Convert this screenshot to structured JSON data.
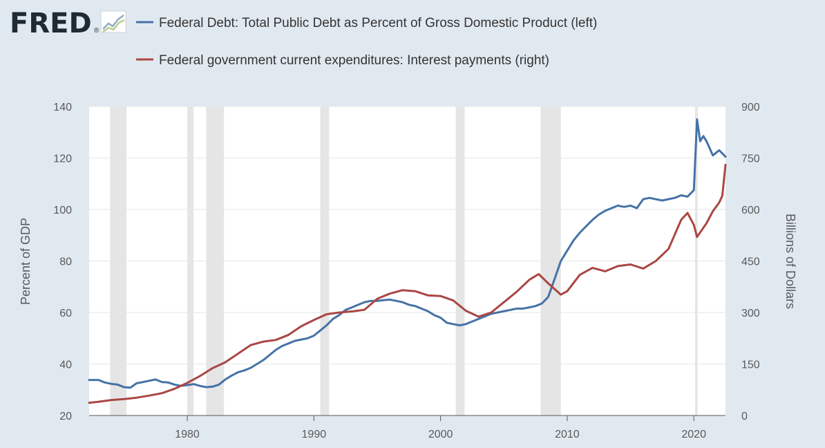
{
  "brand": {
    "name": "FRED",
    "mark": "®",
    "icon": "trend-chart-icon"
  },
  "chart_data": {
    "type": "line",
    "title": "",
    "legend_position": "top-left",
    "grid": true,
    "xlim": [
      1972.25,
      2022.5
    ],
    "x_ticks": [
      1980,
      1990,
      2000,
      2010,
      2020
    ],
    "left_axis": {
      "label": "Percent of GDP",
      "ylim": [
        20,
        140
      ],
      "ticks": [
        20,
        40,
        60,
        80,
        100,
        120,
        140
      ]
    },
    "right_axis": {
      "label": "Billions of Dollars",
      "ylim": [
        0,
        900
      ],
      "ticks": [
        0,
        150,
        300,
        450,
        600,
        750,
        900
      ]
    },
    "recessions": [
      [
        1973.9,
        1975.2
      ],
      [
        1980.0,
        1980.5
      ],
      [
        1981.5,
        1982.9
      ],
      [
        1990.5,
        1991.2
      ],
      [
        2001.2,
        2001.9
      ],
      [
        2007.9,
        2009.5
      ],
      [
        2020.1,
        2020.3
      ]
    ],
    "series": [
      {
        "name": "Federal Debt: Total Public Debt as Percent of Gross Domestic Product (left)",
        "axis": "left",
        "color": "#4572a7",
        "points": [
          [
            1972.25,
            33.8
          ],
          [
            1973,
            33.8
          ],
          [
            1973.5,
            32.8
          ],
          [
            1974,
            32.3
          ],
          [
            1974.5,
            32.0
          ],
          [
            1975,
            31.0
          ],
          [
            1975.5,
            30.8
          ],
          [
            1976,
            32.5
          ],
          [
            1976.5,
            33.0
          ],
          [
            1977,
            33.5
          ],
          [
            1977.5,
            34.0
          ],
          [
            1978,
            33.0
          ],
          [
            1978.5,
            32.8
          ],
          [
            1979,
            32.0
          ],
          [
            1979.5,
            31.5
          ],
          [
            1980,
            31.8
          ],
          [
            1980.5,
            32.2
          ],
          [
            1981,
            31.5
          ],
          [
            1981.5,
            31.0
          ],
          [
            1982,
            31.2
          ],
          [
            1982.5,
            32.0
          ],
          [
            1983,
            34.0
          ],
          [
            1983.5,
            35.5
          ],
          [
            1984,
            36.8
          ],
          [
            1984.5,
            37.5
          ],
          [
            1985,
            38.5
          ],
          [
            1985.5,
            40.0
          ],
          [
            1986,
            41.5
          ],
          [
            1986.5,
            43.5
          ],
          [
            1987,
            45.5
          ],
          [
            1987.5,
            47.0
          ],
          [
            1988,
            48.0
          ],
          [
            1988.5,
            49.0
          ],
          [
            1989,
            49.5
          ],
          [
            1989.5,
            50.0
          ],
          [
            1990,
            51.0
          ],
          [
            1990.5,
            53.0
          ],
          [
            1991,
            55.0
          ],
          [
            1991.5,
            57.5
          ],
          [
            1992,
            59.0
          ],
          [
            1992.5,
            61.0
          ],
          [
            1993,
            62.0
          ],
          [
            1993.5,
            63.0
          ],
          [
            1994,
            64.0
          ],
          [
            1994.5,
            64.5
          ],
          [
            1995,
            64.5
          ],
          [
            1995.5,
            64.8
          ],
          [
            1996,
            65.0
          ],
          [
            1996.5,
            64.5
          ],
          [
            1997,
            64.0
          ],
          [
            1997.5,
            63.0
          ],
          [
            1998,
            62.5
          ],
          [
            1998.5,
            61.5
          ],
          [
            1999,
            60.5
          ],
          [
            1999.5,
            59.0
          ],
          [
            2000,
            58.0
          ],
          [
            2000.5,
            56.0
          ],
          [
            2001,
            55.5
          ],
          [
            2001.5,
            55.0
          ],
          [
            2002,
            55.5
          ],
          [
            2002.5,
            56.5
          ],
          [
            2003,
            57.5
          ],
          [
            2003.5,
            58.5
          ],
          [
            2004,
            59.5
          ],
          [
            2004.5,
            60.0
          ],
          [
            2005,
            60.5
          ],
          [
            2005.5,
            61.0
          ],
          [
            2006,
            61.5
          ],
          [
            2006.5,
            61.5
          ],
          [
            2007,
            62.0
          ],
          [
            2007.5,
            62.5
          ],
          [
            2008,
            63.5
          ],
          [
            2008.5,
            66.0
          ],
          [
            2009,
            73.0
          ],
          [
            2009.5,
            80.0
          ],
          [
            2010,
            84.0
          ],
          [
            2010.5,
            88.0
          ],
          [
            2011,
            91.0
          ],
          [
            2011.5,
            93.5
          ],
          [
            2012,
            96.0
          ],
          [
            2012.5,
            98.0
          ],
          [
            2013,
            99.5
          ],
          [
            2013.5,
            100.5
          ],
          [
            2014,
            101.5
          ],
          [
            2014.5,
            101.0
          ],
          [
            2015,
            101.5
          ],
          [
            2015.5,
            100.5
          ],
          [
            2016,
            104.0
          ],
          [
            2016.5,
            104.5
          ],
          [
            2017,
            104.0
          ],
          [
            2017.5,
            103.5
          ],
          [
            2018,
            104.0
          ],
          [
            2018.5,
            104.5
          ],
          [
            2019,
            105.5
          ],
          [
            2019.5,
            105.0
          ],
          [
            2020.0,
            107.5
          ],
          [
            2020.25,
            135.0
          ],
          [
            2020.5,
            126.5
          ],
          [
            2020.75,
            128.5
          ],
          [
            2021,
            126.5
          ],
          [
            2021.5,
            121.0
          ],
          [
            2022,
            123.0
          ],
          [
            2022.5,
            120.5
          ]
        ]
      },
      {
        "name": "Federal government current expenditures: Interest payments (right)",
        "axis": "right",
        "color": "#aa4643",
        "points": [
          [
            1972.25,
            37
          ],
          [
            1973,
            40
          ],
          [
            1974,
            45
          ],
          [
            1975,
            48
          ],
          [
            1976,
            52
          ],
          [
            1977,
            58
          ],
          [
            1978,
            65
          ],
          [
            1979,
            78
          ],
          [
            1980,
            95
          ],
          [
            1981,
            115
          ],
          [
            1982,
            138
          ],
          [
            1983,
            155
          ],
          [
            1984,
            180
          ],
          [
            1985,
            205
          ],
          [
            1986,
            215
          ],
          [
            1987,
            220
          ],
          [
            1988,
            235
          ],
          [
            1989,
            260
          ],
          [
            1990,
            278
          ],
          [
            1991,
            295
          ],
          [
            1992,
            300
          ],
          [
            1993,
            303
          ],
          [
            1994,
            308
          ],
          [
            1995,
            340
          ],
          [
            1996,
            355
          ],
          [
            1997,
            365
          ],
          [
            1998,
            362
          ],
          [
            1999,
            350
          ],
          [
            2000,
            348
          ],
          [
            2001,
            335
          ],
          [
            2002,
            305
          ],
          [
            2003,
            288
          ],
          [
            2004,
            300
          ],
          [
            2005,
            330
          ],
          [
            2006,
            360
          ],
          [
            2007,
            395
          ],
          [
            2007.75,
            412
          ],
          [
            2008.5,
            385
          ],
          [
            2009.5,
            352
          ],
          [
            2010,
            362
          ],
          [
            2011,
            410
          ],
          [
            2012,
            430
          ],
          [
            2013,
            420
          ],
          [
            2014,
            435
          ],
          [
            2015,
            440
          ],
          [
            2016,
            428
          ],
          [
            2017,
            450
          ],
          [
            2018,
            485
          ],
          [
            2019,
            570
          ],
          [
            2019.5,
            590
          ],
          [
            2020,
            555
          ],
          [
            2020.25,
            520
          ],
          [
            2021,
            560
          ],
          [
            2021.5,
            595
          ],
          [
            2022,
            620
          ],
          [
            2022.25,
            640
          ],
          [
            2022.5,
            730
          ]
        ]
      }
    ]
  }
}
